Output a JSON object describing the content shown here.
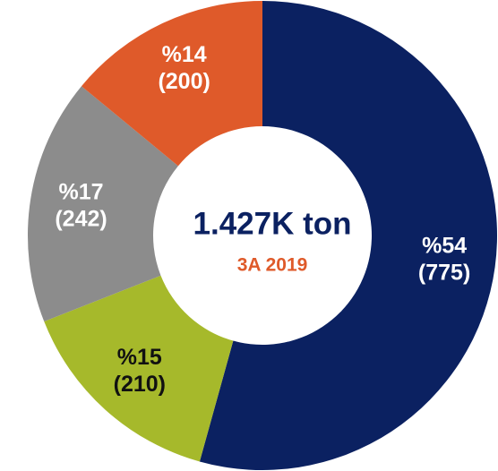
{
  "chart_data": {
    "type": "donut",
    "center_title": "1.427K ton",
    "center_subtitle": "3A 2019",
    "values": [
      775,
      210,
      242,
      200
    ],
    "value_labels": [
      "(775)",
      "(210)",
      "(242)",
      "(200)"
    ],
    "percentages": [
      54,
      15,
      17,
      14
    ],
    "percentage_labels": [
      "%54",
      "%15",
      "%17",
      "%14"
    ],
    "colors": [
      "#0b2161",
      "#a6b92b",
      "#8c8c8c",
      "#df5a2a"
    ],
    "label_colors": [
      "#ffffff",
      "#111111",
      "#ffffff",
      "#ffffff"
    ],
    "center_title_color": "#0b2161",
    "center_subtitle_color": "#df5a2a"
  }
}
